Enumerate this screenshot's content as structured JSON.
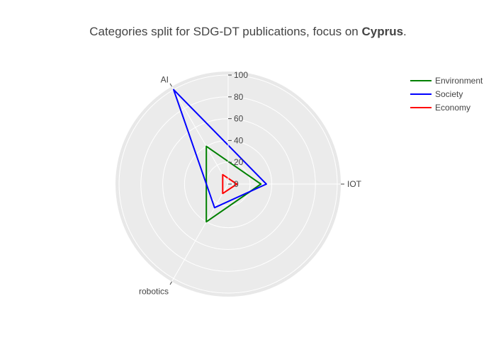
{
  "chart_data": {
    "type": "radar",
    "title_prefix": "Categories split for SDG-DT publications, focus on ",
    "title_bold": "Cyprus",
    "title_suffix": ".",
    "axes": [
      "IOT",
      "AI",
      "robotics"
    ],
    "radial_range": [
      0,
      100
    ],
    "radial_ticks": [
      0,
      20,
      40,
      60,
      80,
      100
    ],
    "legend_position": "top-right",
    "series": [
      {
        "name": "Environment",
        "color": "#008000",
        "values": [
          30,
          40,
          40
        ]
      },
      {
        "name": "Society",
        "color": "#0000ff",
        "values": [
          35,
          100,
          25
        ]
      },
      {
        "name": "Economy",
        "color": "#ff0000",
        "values": [
          8,
          10,
          10
        ]
      }
    ]
  }
}
